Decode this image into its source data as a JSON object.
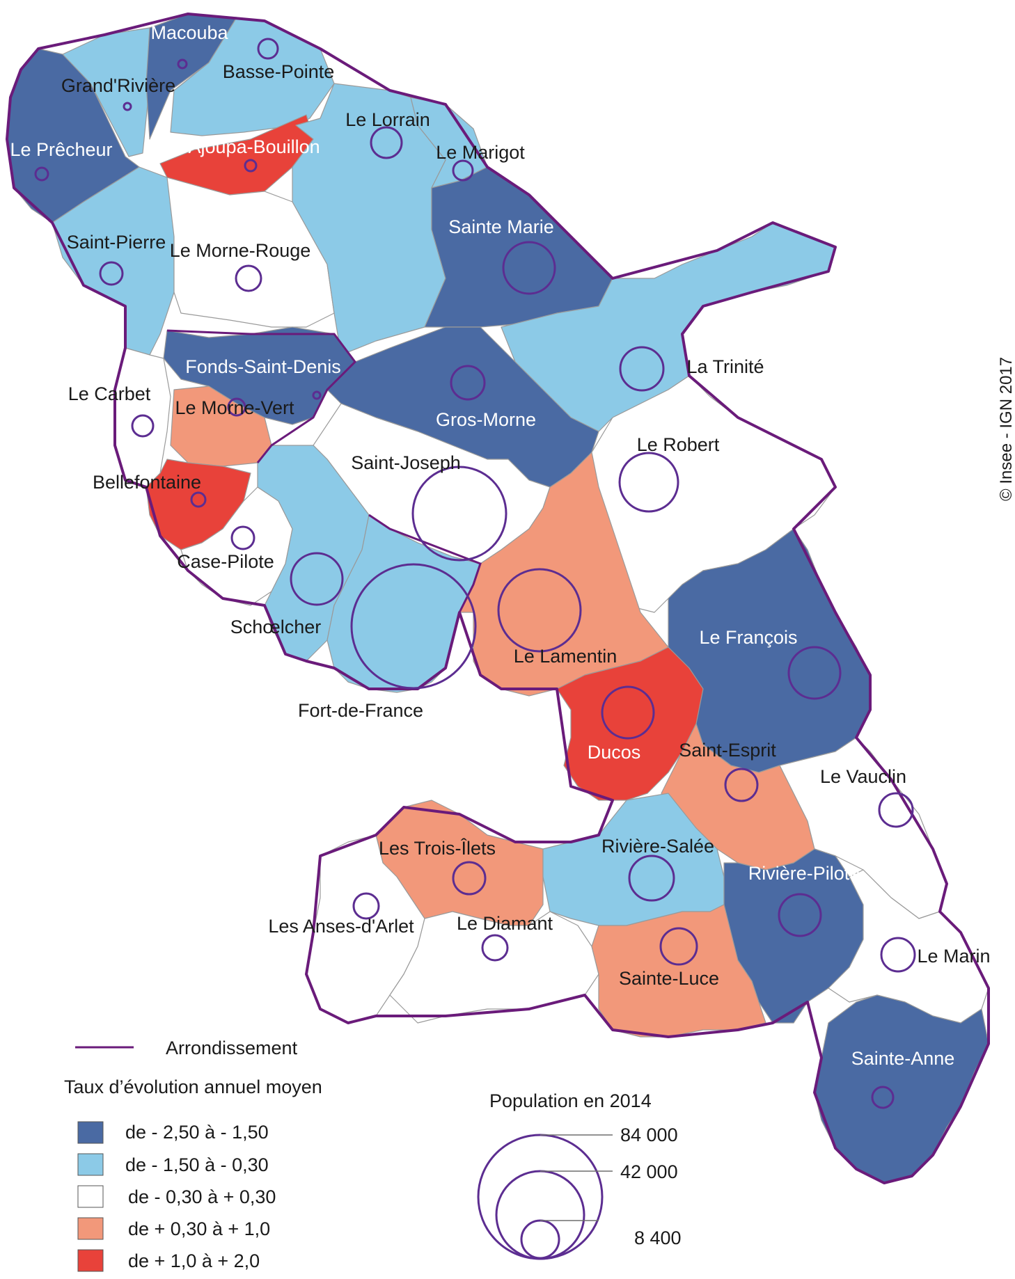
{
  "map": {
    "copyright": "© Insee - IGN 2017",
    "colors": {
      "class1": "#4a6aa3",
      "class2": "#8ccae7",
      "class3": "#ffffff",
      "class4": "#f2987a",
      "class5": "#e8423a",
      "boundary": "#6a1b7a",
      "bubble": "#5c2d91"
    },
    "communes": [
      {
        "name": "Macouba",
        "class": 1
      },
      {
        "name": "Grand'Rivière",
        "class": 2
      },
      {
        "name": "Basse-Pointe",
        "class": 2
      },
      {
        "name": "Le Prêcheur",
        "class": 1
      },
      {
        "name": "L'Ajoupa-Bouillon",
        "class": 5
      },
      {
        "name": "Le Lorrain",
        "class": 2
      },
      {
        "name": "Le Marigot",
        "class": 2
      },
      {
        "name": "Sainte Marie",
        "class": 1
      },
      {
        "name": "Saint-Pierre",
        "class": 2
      },
      {
        "name": "Le Morne-Rouge",
        "class": 3
      },
      {
        "name": "Fonds-Saint-Denis",
        "class": 1
      },
      {
        "name": "La Trinité",
        "class": 2
      },
      {
        "name": "Le Carbet",
        "class": 3
      },
      {
        "name": "Le Morne-Vert",
        "class": 4
      },
      {
        "name": "Gros-Morne",
        "class": 1
      },
      {
        "name": "Le Robert",
        "class": 3
      },
      {
        "name": "Saint-Joseph",
        "class": 3
      },
      {
        "name": "Bellefontaine",
        "class": 5
      },
      {
        "name": "Case-Pilote",
        "class": 3
      },
      {
        "name": "Schœlcher",
        "class": 2
      },
      {
        "name": "Fort-de-France",
        "class": 2
      },
      {
        "name": "Le Lamentin",
        "class": 4
      },
      {
        "name": "Le François",
        "class": 1
      },
      {
        "name": "Ducos",
        "class": 5
      },
      {
        "name": "Saint-Esprit",
        "class": 4
      },
      {
        "name": "Le Vauclin",
        "class": 3
      },
      {
        "name": "Les Trois-Îlets",
        "class": 4
      },
      {
        "name": "Rivière-Salée",
        "class": 2
      },
      {
        "name": "Rivière-Pilote",
        "class": 1
      },
      {
        "name": "Les Anses-d'Arlet",
        "class": 3
      },
      {
        "name": "Le Diamant",
        "class": 3
      },
      {
        "name": "Sainte-Luce",
        "class": 4
      },
      {
        "name": "Le Marin",
        "class": 3
      },
      {
        "name": "Sainte-Anne",
        "class": 1
      }
    ]
  },
  "legend": {
    "boundary_label": "Arrondissement",
    "rate_title": "Taux d’évolution annuel moyen",
    "classes": [
      {
        "label": "de - 2,50  à - 1,50",
        "color": "#4a6aa3"
      },
      {
        "label": "de - 1,50  à - 0,30",
        "color": "#8ccae7"
      },
      {
        "label": "de - 0,30  à + 0,30",
        "color": "#ffffff"
      },
      {
        "label": "de + 0,30  à + 1,0",
        "color": "#f2987a"
      },
      {
        "label": "de + 1,0  à  + 2,0",
        "color": "#e8423a"
      }
    ],
    "population_title": "Population en 2014",
    "population_values": [
      "84 000",
      "42 000",
      "8 400"
    ]
  }
}
